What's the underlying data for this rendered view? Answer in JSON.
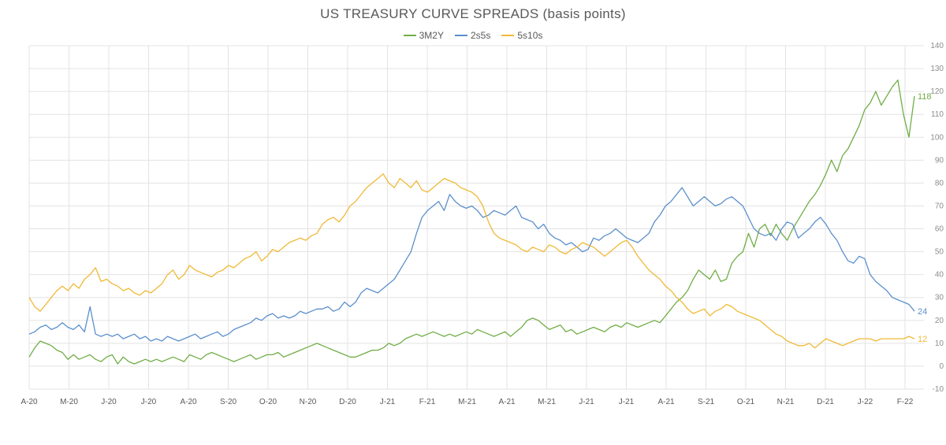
{
  "chart_data": {
    "type": "line",
    "title": "US TREASURY CURVE SPREADS (basis points)",
    "xlabel": "",
    "ylabel": "",
    "ylim": [
      -10,
      140
    ],
    "yticks": [
      -10,
      0,
      10,
      20,
      30,
      40,
      50,
      60,
      70,
      80,
      90,
      100,
      110,
      120,
      130,
      140
    ],
    "x_tick_labels": [
      "A-20",
      "M-20",
      "J-20",
      "J-20",
      "A-20",
      "S-20",
      "O-20",
      "N-20",
      "D-20",
      "J-21",
      "F-21",
      "M-21",
      "A-21",
      "M-21",
      "J-21",
      "J-21",
      "A-21",
      "S-21",
      "O-21",
      "N-21",
      "D-21",
      "J-22",
      "F-22"
    ],
    "grid": true,
    "legend": "top-center",
    "series": [
      {
        "name": "3M2Y",
        "color": "#70ad47",
        "end_label": "118",
        "values": [
          4,
          8,
          11,
          10,
          9,
          7,
          6,
          3,
          5,
          3,
          4,
          5,
          3,
          2,
          4,
          5,
          1,
          4,
          2,
          1,
          2,
          3,
          2,
          3,
          2,
          3,
          4,
          3,
          2,
          5,
          4,
          3,
          5,
          6,
          5,
          4,
          3,
          2,
          3,
          4,
          5,
          3,
          4,
          5,
          5,
          6,
          4,
          5,
          6,
          7,
          8,
          9,
          10,
          9,
          8,
          7,
          6,
          5,
          4,
          4,
          5,
          6,
          7,
          7,
          8,
          10,
          9,
          10,
          12,
          13,
          14,
          13,
          14,
          15,
          14,
          13,
          14,
          13,
          14,
          15,
          14,
          16,
          15,
          14,
          13,
          14,
          15,
          13,
          15,
          17,
          20,
          21,
          20,
          18,
          16,
          17,
          18,
          15,
          16,
          14,
          15,
          16,
          17,
          16,
          15,
          17,
          18,
          17,
          19,
          18,
          17,
          18,
          19,
          20,
          19,
          22,
          25,
          28,
          30,
          33,
          38,
          42,
          40,
          38,
          42,
          37,
          38,
          45,
          48,
          50,
          58,
          52,
          60,
          62,
          57,
          62,
          58,
          55,
          60,
          64,
          68,
          72,
          75,
          79,
          84,
          90,
          85,
          92,
          95,
          100,
          105,
          112,
          115,
          120,
          114,
          118,
          122,
          125,
          110,
          100,
          118
        ]
      },
      {
        "name": "2s5s",
        "color": "#5b8fcb",
        "end_label": "24",
        "values": [
          14,
          15,
          17,
          18,
          16,
          17,
          19,
          17,
          16,
          18,
          15,
          26,
          14,
          13,
          14,
          13,
          14,
          12,
          13,
          14,
          12,
          13,
          11,
          12,
          11,
          13,
          12,
          11,
          12,
          13,
          14,
          12,
          13,
          14,
          15,
          13,
          14,
          16,
          17,
          18,
          19,
          21,
          20,
          22,
          23,
          21,
          22,
          21,
          22,
          24,
          23,
          24,
          25,
          25,
          26,
          24,
          25,
          28,
          26,
          28,
          32,
          34,
          33,
          32,
          34,
          36,
          38,
          42,
          46,
          50,
          58,
          65,
          68,
          70,
          72,
          68,
          75,
          72,
          70,
          69,
          70,
          68,
          65,
          66,
          68,
          67,
          66,
          68,
          70,
          65,
          64,
          63,
          60,
          62,
          58,
          56,
          55,
          53,
          54,
          52,
          50,
          51,
          56,
          55,
          57,
          58,
          60,
          58,
          56,
          55,
          54,
          56,
          58,
          63,
          66,
          70,
          72,
          75,
          78,
          74,
          70,
          72,
          74,
          72,
          70,
          71,
          73,
          74,
          72,
          70,
          65,
          60,
          58,
          57,
          58,
          55,
          60,
          63,
          62,
          56,
          58,
          60,
          63,
          65,
          62,
          58,
          55,
          50,
          46,
          45,
          48,
          47,
          40,
          37,
          35,
          33,
          30,
          29,
          28,
          27,
          24
        ]
      },
      {
        "name": "5s10s",
        "color": "#f0b936",
        "end_label": "12",
        "values": [
          30,
          26,
          24,
          27,
          30,
          33,
          35,
          33,
          36,
          34,
          38,
          40,
          43,
          37,
          38,
          36,
          35,
          33,
          34,
          32,
          31,
          33,
          32,
          34,
          36,
          40,
          42,
          38,
          40,
          44,
          42,
          41,
          40,
          39,
          41,
          42,
          44,
          43,
          45,
          47,
          48,
          50,
          46,
          48,
          51,
          50,
          52,
          54,
          55,
          56,
          55,
          57,
          58,
          62,
          64,
          65,
          63,
          66,
          70,
          72,
          75,
          78,
          80,
          82,
          84,
          80,
          78,
          82,
          80,
          78,
          81,
          77,
          76,
          78,
          80,
          82,
          81,
          80,
          78,
          77,
          76,
          74,
          70,
          63,
          58,
          56,
          55,
          54,
          53,
          51,
          50,
          52,
          51,
          50,
          53,
          52,
          50,
          49,
          51,
          52,
          54,
          53,
          52,
          50,
          48,
          50,
          52,
          54,
          55,
          52,
          48,
          45,
          42,
          40,
          38,
          35,
          33,
          30,
          28,
          25,
          23,
          24,
          25,
          22,
          24,
          25,
          27,
          26,
          24,
          23,
          22,
          21,
          20,
          18,
          16,
          14,
          13,
          11,
          10,
          9,
          9,
          10,
          8,
          10,
          12,
          11,
          10,
          9,
          10,
          11,
          12,
          12,
          12,
          11,
          12,
          12,
          12,
          12,
          12,
          13,
          12
        ]
      }
    ]
  }
}
